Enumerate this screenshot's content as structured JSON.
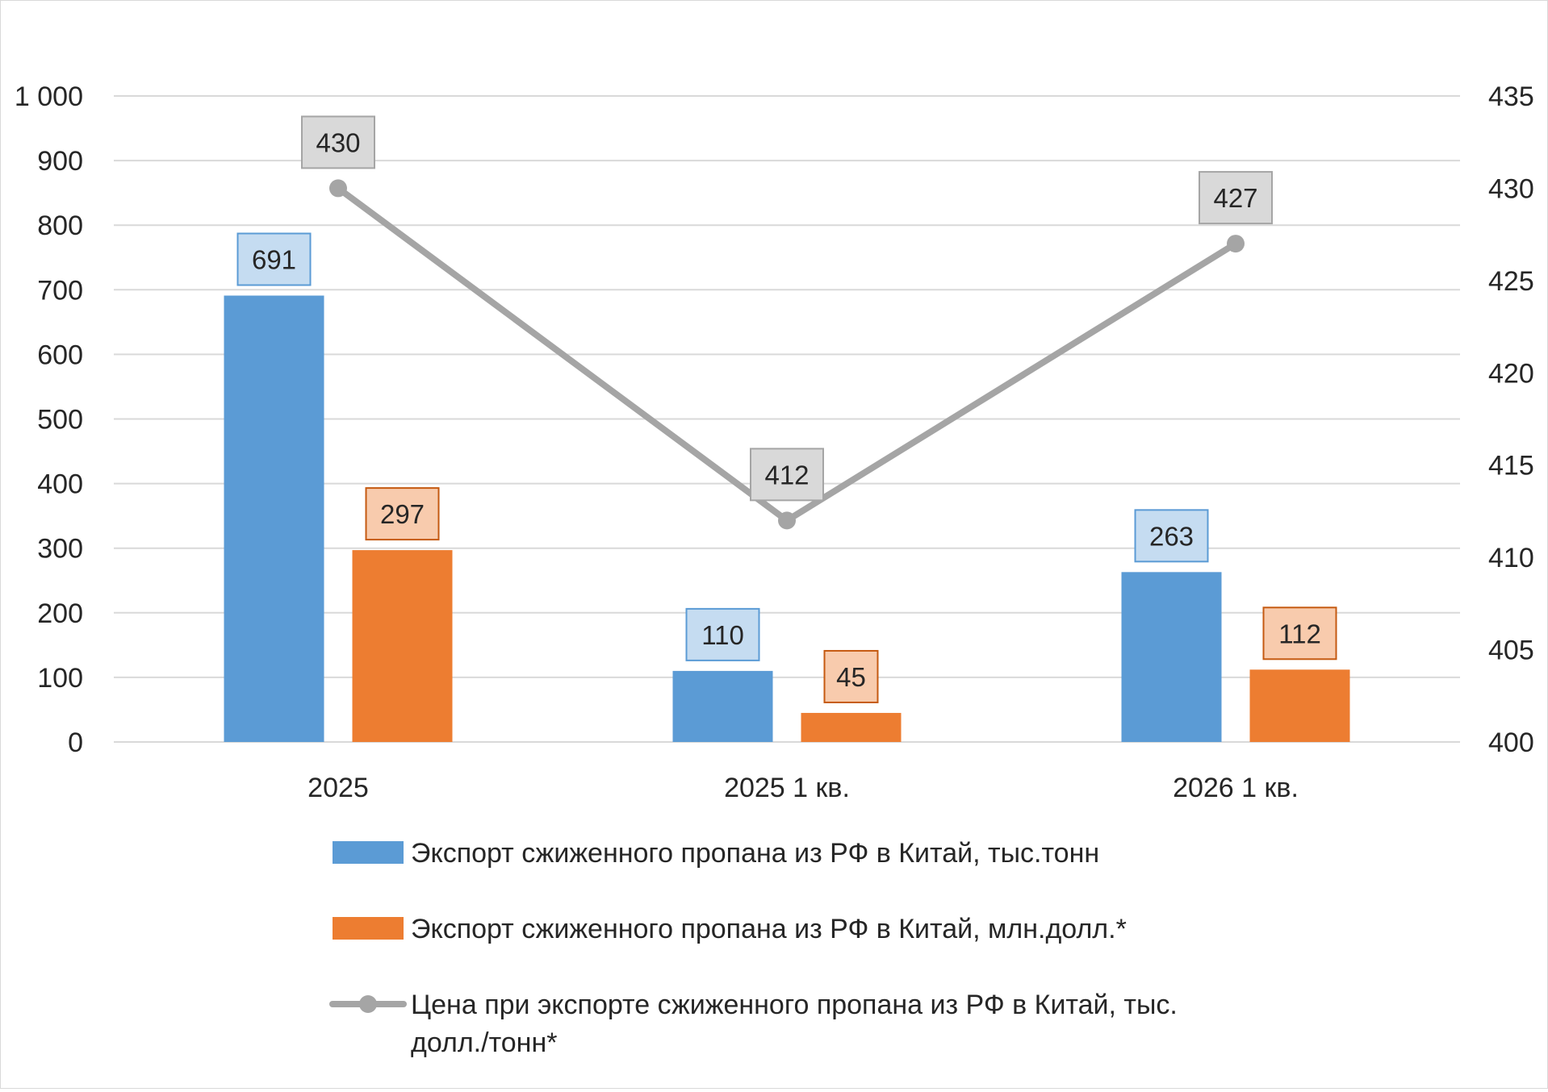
{
  "chart_data": {
    "type": "bar",
    "categories": [
      "2025",
      "2025 1 кв.",
      "2026 1 кв."
    ],
    "series": [
      {
        "name": "Экспорт сжиженного пропана из РФ в Китай, тыс.тонн",
        "kind": "bar",
        "axis": "left",
        "values": [
          691,
          110,
          263
        ],
        "color": "#5b9bd5",
        "label_fill": "#c5dcf1",
        "label_border": "#5b9bd5"
      },
      {
        "name": "Экспорт сжиженного пропана из РФ в Китай, млн.долл.*",
        "kind": "bar",
        "axis": "left",
        "values": [
          297,
          45,
          112
        ],
        "color": "#ed7d31",
        "label_fill": "#f8cbad",
        "label_border": "#c55a11"
      },
      {
        "name_lines": [
          "Цена при экспорте сжиженного пропана из РФ в Китай, тыс.",
          "долл./тонн*"
        ],
        "kind": "line",
        "axis": "right",
        "values": [
          430,
          412,
          427
        ],
        "color": "#a5a5a5",
        "label_fill": "#d9d9d9",
        "label_border": "#a5a5a5"
      }
    ],
    "y_left": {
      "ylim": [
        0,
        1000
      ],
      "ticks": [
        0,
        100,
        200,
        300,
        400,
        500,
        600,
        700,
        800,
        900,
        1000
      ],
      "tick_labels": [
        "0",
        "100",
        "200",
        "300",
        "400",
        "500",
        "600",
        "700",
        "800",
        "900",
        "1 000"
      ]
    },
    "y_right": {
      "ylim": [
        400,
        435
      ],
      "ticks": [
        400,
        405,
        410,
        415,
        420,
        425,
        430,
        435
      ],
      "tick_labels": [
        "400",
        "405",
        "410",
        "415",
        "420",
        "425",
        "430",
        "435"
      ]
    },
    "grid": true,
    "legend_position": "bottom",
    "gridline_color": "#d9d9d9"
  }
}
